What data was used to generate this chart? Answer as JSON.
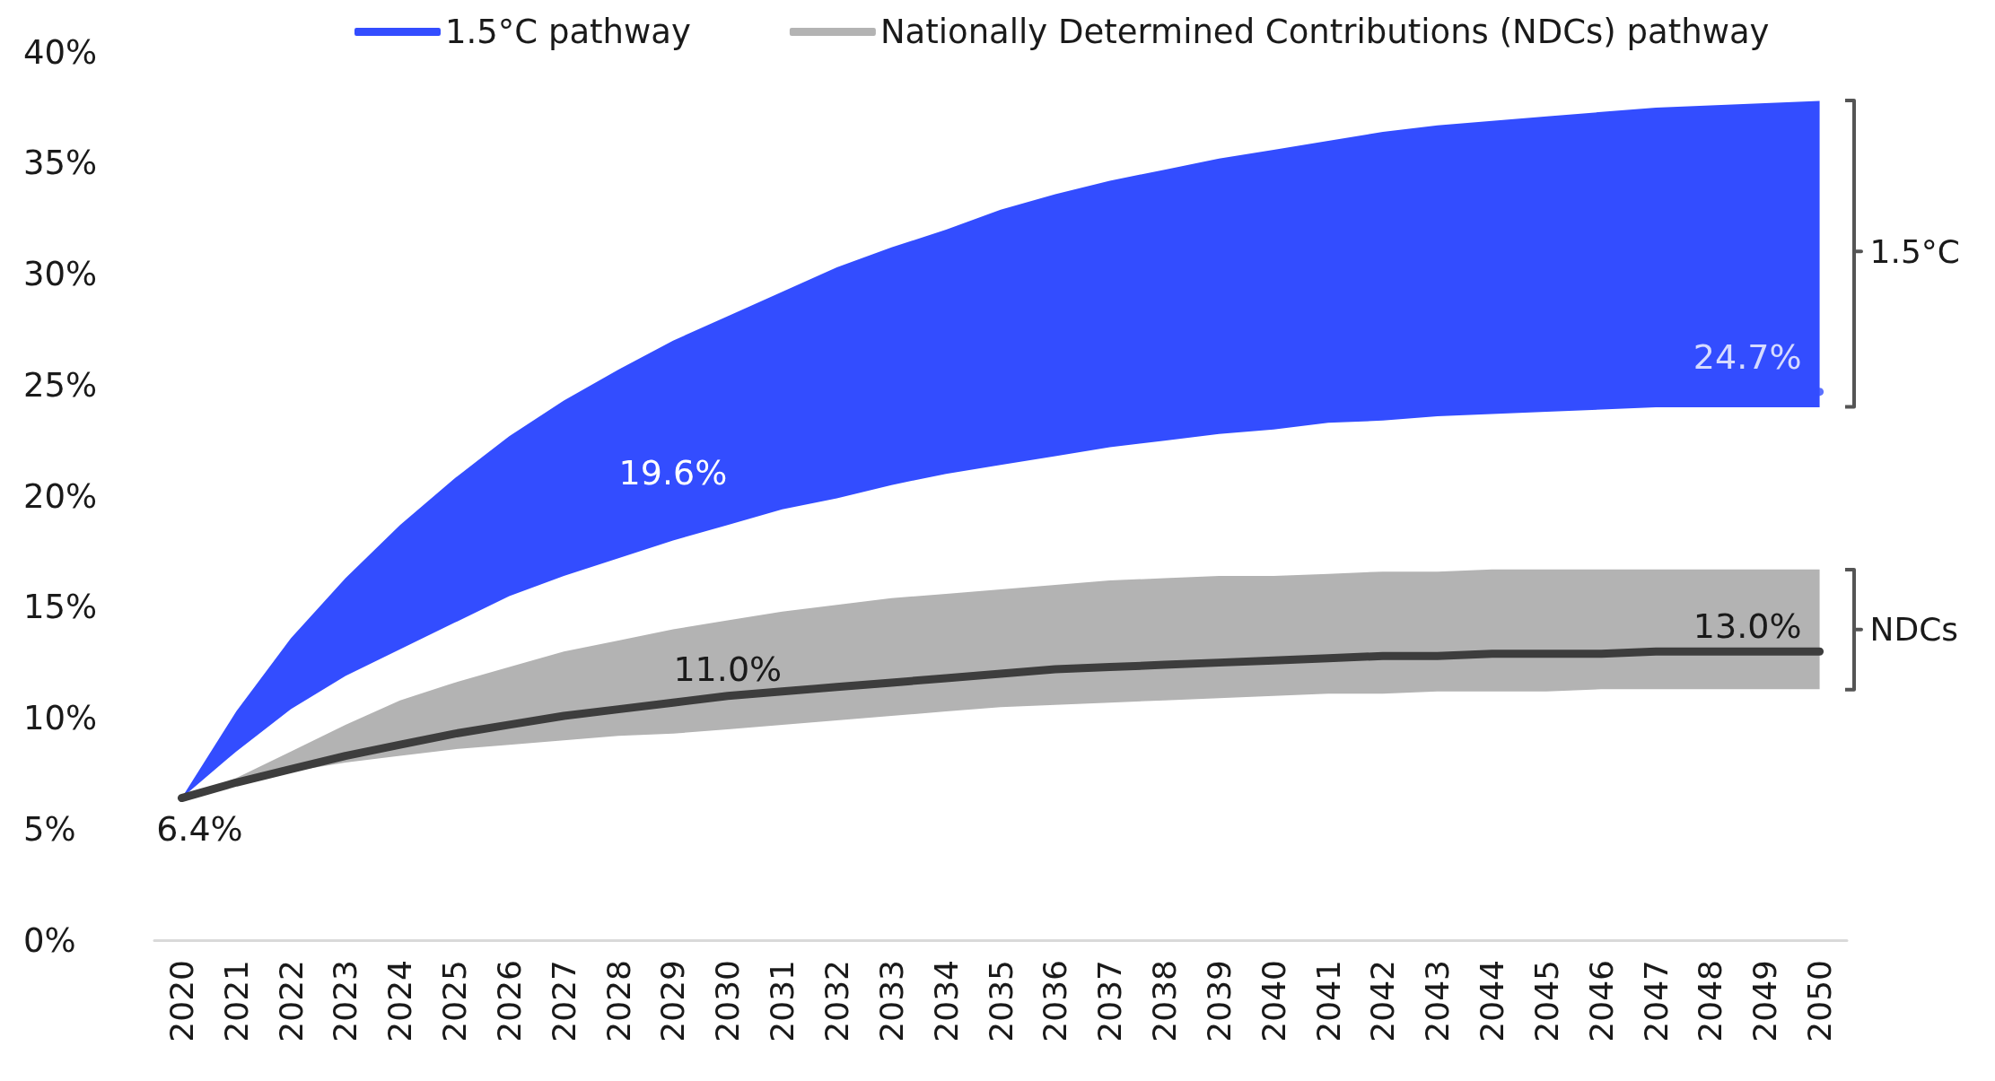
{
  "chart_data": {
    "type": "line",
    "categories": [
      "2020",
      "2021",
      "2022",
      "2023",
      "2024",
      "2025",
      "2026",
      "2027",
      "2028",
      "2029",
      "2030",
      "2031",
      "2032",
      "2033",
      "2034",
      "2035",
      "2036",
      "2037",
      "2038",
      "2039",
      "2040",
      "2041",
      "2042",
      "2043",
      "2044",
      "2045",
      "2046",
      "2047",
      "2048",
      "2049",
      "2050"
    ],
    "series": [
      {
        "name": "1.5°C pathway",
        "type": "scatter",
        "marker": "circle",
        "color": "#334dff",
        "values": [
          null,
          null,
          null,
          null,
          null,
          null,
          null,
          null,
          null,
          null,
          null,
          null,
          null,
          null,
          null,
          null,
          null,
          null,
          null,
          null,
          null,
          null,
          null,
          null,
          null,
          null,
          null,
          null,
          null,
          null,
          24.7
        ],
        "value_labels": [
          null,
          null,
          null,
          null,
          null,
          null,
          null,
          null,
          null,
          null,
          null,
          null,
          null,
          null,
          null,
          null,
          null,
          null,
          null,
          null,
          null,
          null,
          null,
          null,
          null,
          null,
          null,
          null,
          null,
          null,
          "24.7%"
        ],
        "lower": [
          6.4,
          8.5,
          10.4,
          11.9,
          13.1,
          14.3,
          15.5,
          16.4,
          17.2,
          18.0,
          18.7,
          19.4,
          19.9,
          20.5,
          21.0,
          21.4,
          21.8,
          22.2,
          22.5,
          22.8,
          23.0,
          23.3,
          23.4,
          23.6,
          23.7,
          23.8,
          23.9,
          24.0,
          24.0,
          24.0,
          24.0
        ],
        "upper": [
          6.4,
          10.3,
          13.6,
          16.3,
          18.7,
          20.8,
          22.7,
          24.3,
          25.7,
          27.0,
          28.1,
          29.2,
          30.3,
          31.2,
          32.0,
          32.9,
          33.6,
          34.2,
          34.7,
          35.2,
          35.6,
          36.0,
          36.4,
          36.7,
          36.9,
          37.1,
          37.3,
          37.5,
          37.6,
          37.7,
          37.8
        ]
      },
      {
        "name": "Nationally Determined Contributions (NDCs) pathway",
        "color": "#b3b3b3",
        "values": [
          null,
          null,
          null,
          null,
          null,
          null,
          null,
          null,
          null,
          null,
          null,
          null,
          null,
          null,
          null,
          null,
          null,
          null,
          null,
          null,
          null,
          null,
          null,
          null,
          null,
          null,
          null,
          null,
          null,
          null,
          null
        ],
        "lower": [
          6.4,
          7.0,
          7.6,
          8.0,
          8.3,
          8.6,
          8.8,
          9.0,
          9.2,
          9.3,
          9.5,
          9.7,
          9.9,
          10.1,
          10.3,
          10.5,
          10.6,
          10.7,
          10.8,
          10.9,
          11.0,
          11.1,
          11.1,
          11.2,
          11.2,
          11.2,
          11.3,
          11.3,
          11.3,
          11.3,
          11.3
        ],
        "upper": [
          6.4,
          7.3,
          8.5,
          9.7,
          10.8,
          11.6,
          12.3,
          13.0,
          13.5,
          14.0,
          14.4,
          14.8,
          15.1,
          15.4,
          15.6,
          15.8,
          16.0,
          16.2,
          16.3,
          16.4,
          16.4,
          16.5,
          16.6,
          16.6,
          16.7,
          16.7,
          16.7,
          16.7,
          16.7,
          16.7,
          16.7
        ]
      },
      {
        "color": "#3d3d3d",
        "values": [
          6.4,
          7.1,
          7.7,
          8.3,
          8.8,
          9.3,
          9.7,
          10.1,
          10.4,
          10.7,
          11.0,
          11.2,
          11.4,
          11.6,
          11.8,
          12.0,
          12.2,
          12.3,
          12.4,
          12.5,
          12.6,
          12.7,
          12.8,
          12.8,
          12.9,
          12.9,
          12.9,
          13.0,
          13.0,
          13.0,
          13.0
        ],
        "value_labels": [
          "6.4%",
          null,
          null,
          null,
          null,
          null,
          null,
          null,
          null,
          null,
          "11.0%",
          null,
          null,
          null,
          null,
          null,
          null,
          null,
          null,
          null,
          null,
          null,
          null,
          null,
          null,
          null,
          null,
          null,
          null,
          null,
          "13.0%"
        ]
      }
    ],
    "ylim": [
      0,
      40
    ],
    "yticks": [
      {
        "value": 0,
        "label": "0%"
      },
      {
        "value": 5,
        "label": "5%"
      },
      {
        "value": 10,
        "label": "10%"
      },
      {
        "value": 15,
        "label": "15%"
      },
      {
        "value": 20,
        "label": "20%"
      },
      {
        "value": 25,
        "label": "25%"
      },
      {
        "value": 30,
        "label": "30%"
      },
      {
        "value": 35,
        "label": "35%"
      },
      {
        "value": 40,
        "label": "40%"
      }
    ],
    "grid": false,
    "legend": "top",
    "marker": "none",
    "line_style": "solid",
    "annotations": [
      "19.6%",
      {
        "text": "1.5°C",
        "x": "2050",
        "y": 31
      },
      {
        "text": "NDCs",
        "x": "2050",
        "y": 14
      }
    ]
  }
}
